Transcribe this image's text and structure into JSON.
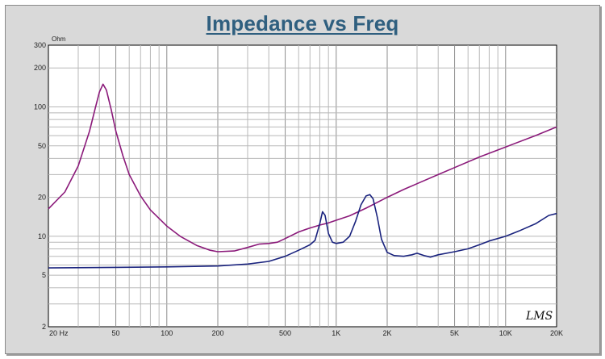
{
  "chart_data": {
    "type": "line",
    "title": "Impedance vs Freq",
    "ylabel": "Ohm",
    "xlabel": "",
    "x_scale": "log",
    "y_scale": "log",
    "xlim": [
      20,
      20000
    ],
    "ylim": [
      2,
      300
    ],
    "grid": true,
    "x_ticks": [
      {
        "value": 20,
        "label": "20  Hz"
      },
      {
        "value": 50,
        "label": "50"
      },
      {
        "value": 100,
        "label": "100"
      },
      {
        "value": 200,
        "label": "200"
      },
      {
        "value": 500,
        "label": "500"
      },
      {
        "value": 1000,
        "label": "1K"
      },
      {
        "value": 2000,
        "label": "2K"
      },
      {
        "value": 5000,
        "label": "5K"
      },
      {
        "value": 10000,
        "label": "10K"
      },
      {
        "value": 20000,
        "label": "20K"
      }
    ],
    "y_ticks": [
      {
        "value": 2,
        "label": "2"
      },
      {
        "value": 5,
        "label": "5"
      },
      {
        "value": 10,
        "label": "10"
      },
      {
        "value": 20,
        "label": "20"
      },
      {
        "value": 50,
        "label": "50"
      },
      {
        "value": 100,
        "label": "100"
      },
      {
        "value": 200,
        "label": "200"
      },
      {
        "value": 300,
        "label": "300"
      }
    ],
    "series": [
      {
        "color": "#8b1a7a",
        "points": [
          [
            20,
            16.3
          ],
          [
            25,
            22
          ],
          [
            30,
            35
          ],
          [
            35,
            65
          ],
          [
            38,
            100
          ],
          [
            40,
            130
          ],
          [
            42,
            150
          ],
          [
            44,
            135
          ],
          [
            47,
            95
          ],
          [
            50,
            65
          ],
          [
            55,
            42
          ],
          [
            60,
            30
          ],
          [
            70,
            20.5
          ],
          [
            80,
            16
          ],
          [
            100,
            12
          ],
          [
            120,
            10
          ],
          [
            150,
            8.5
          ],
          [
            180,
            7.8
          ],
          [
            200,
            7.6
          ],
          [
            250,
            7.7
          ],
          [
            300,
            8.2
          ],
          [
            350,
            8.7
          ],
          [
            400,
            8.8
          ],
          [
            450,
            9.0
          ],
          [
            500,
            9.6
          ],
          [
            600,
            10.8
          ],
          [
            700,
            11.6
          ],
          [
            800,
            12.2
          ],
          [
            900,
            12.7
          ],
          [
            1000,
            13.3
          ],
          [
            1200,
            14.4
          ],
          [
            1500,
            16.5
          ],
          [
            2000,
            20
          ],
          [
            2500,
            23
          ],
          [
            3000,
            25.5
          ],
          [
            4000,
            30
          ],
          [
            5000,
            34
          ],
          [
            7000,
            41
          ],
          [
            10000,
            49
          ],
          [
            15000,
            60
          ],
          [
            20000,
            70
          ]
        ]
      },
      {
        "color": "#1a237e",
        "points": [
          [
            20,
            5.7
          ],
          [
            50,
            5.75
          ],
          [
            100,
            5.8
          ],
          [
            200,
            5.9
          ],
          [
            300,
            6.1
          ],
          [
            400,
            6.4
          ],
          [
            500,
            7.0
          ],
          [
            600,
            7.8
          ],
          [
            700,
            8.6
          ],
          [
            750,
            9.3
          ],
          [
            800,
            12.5
          ],
          [
            830,
            15.5
          ],
          [
            860,
            14.5
          ],
          [
            900,
            10.5
          ],
          [
            950,
            9.0
          ],
          [
            1000,
            8.8
          ],
          [
            1100,
            9.0
          ],
          [
            1200,
            10.0
          ],
          [
            1300,
            13.0
          ],
          [
            1400,
            17.5
          ],
          [
            1500,
            20.5
          ],
          [
            1580,
            21
          ],
          [
            1650,
            19.5
          ],
          [
            1750,
            14.0
          ],
          [
            1850,
            9.5
          ],
          [
            2000,
            7.5
          ],
          [
            2200,
            7.1
          ],
          [
            2500,
            7.0
          ],
          [
            2800,
            7.2
          ],
          [
            3000,
            7.4
          ],
          [
            3300,
            7.1
          ],
          [
            3600,
            6.9
          ],
          [
            4000,
            7.2
          ],
          [
            5000,
            7.6
          ],
          [
            6000,
            8.0
          ],
          [
            7000,
            8.6
          ],
          [
            8000,
            9.2
          ],
          [
            10000,
            10.0
          ],
          [
            12000,
            11.0
          ],
          [
            15000,
            12.5
          ],
          [
            18000,
            14.5
          ],
          [
            20000,
            15
          ]
        ]
      }
    ],
    "signature": "LMS"
  }
}
